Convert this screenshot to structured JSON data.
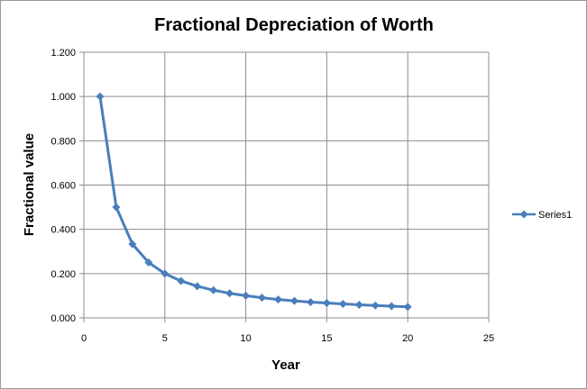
{
  "chart_data": {
    "type": "scatter",
    "title": "Fractional Depreciation of Worth",
    "xlabel": "Year",
    "ylabel": "Fractional value",
    "xlim": [
      0,
      25
    ],
    "ylim": [
      0,
      1.2
    ],
    "x_ticks": [
      "0",
      "5",
      "10",
      "15",
      "20",
      "25"
    ],
    "y_ticks": [
      "0.000",
      "0.200",
      "0.400",
      "0.600",
      "0.800",
      "1.000",
      "1.200"
    ],
    "grid": true,
    "legend_position": "right",
    "series": [
      {
        "name": "Series1",
        "color": "#4a7ebb",
        "marker": "diamond",
        "x": [
          1,
          2,
          3,
          4,
          5,
          6,
          7,
          8,
          9,
          10,
          11,
          12,
          13,
          14,
          15,
          16,
          17,
          18,
          19,
          20
        ],
        "y": [
          1.0,
          0.5,
          0.333,
          0.25,
          0.2,
          0.167,
          0.143,
          0.125,
          0.111,
          0.1,
          0.091,
          0.083,
          0.077,
          0.071,
          0.067,
          0.063,
          0.059,
          0.056,
          0.053,
          0.05
        ]
      }
    ]
  }
}
